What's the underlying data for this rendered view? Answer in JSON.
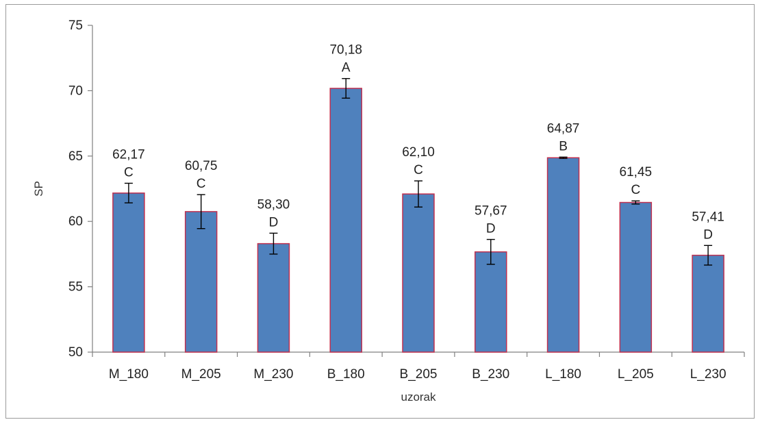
{
  "chart_data": {
    "type": "bar",
    "title": "",
    "xlabel": "uzorak",
    "ylabel": "SP",
    "ylim": [
      50,
      75
    ],
    "yticks": [
      50,
      55,
      60,
      65,
      70,
      75
    ],
    "grid": false,
    "legend": "none",
    "bar_color": "#4f81bd",
    "bar_border_color": "#c0304f",
    "categories": [
      "M_180",
      "M_205",
      "M_230",
      "B_180",
      "B_205",
      "B_230",
      "L_180",
      "L_205",
      "L_230"
    ],
    "values": [
      62.17,
      60.75,
      58.3,
      70.18,
      62.1,
      57.67,
      64.87,
      61.45,
      57.41
    ],
    "errors": [
      0.75,
      1.3,
      0.8,
      0.75,
      1.0,
      0.95,
      0.05,
      0.12,
      0.75
    ],
    "value_labels": [
      "62,17",
      "60,75",
      "58,30",
      "70,18",
      "62,10",
      "57,67",
      "64,87",
      "61,45",
      "57,41"
    ],
    "letters": [
      "C",
      "C",
      "D",
      "A",
      "C",
      "D",
      "B",
      "C",
      "D"
    ]
  }
}
